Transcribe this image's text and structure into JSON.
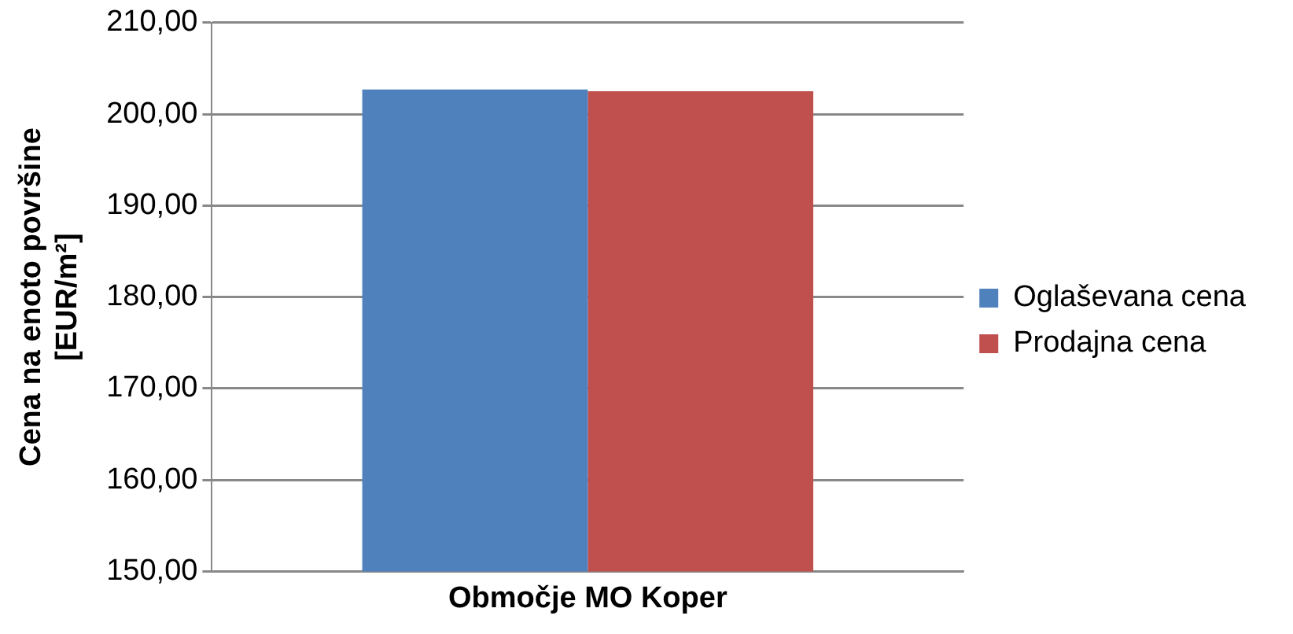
{
  "chart_data": {
    "type": "bar",
    "ylabel": "Cena na enoto površine [EUR/m²]",
    "categories": [
      "Območje MO Koper"
    ],
    "series": [
      {
        "name": "Oglaševana cena",
        "color": "#4f81bd",
        "values": [
          202.7
        ]
      },
      {
        "name": "Prodajna cena",
        "color": "#c0504d",
        "values": [
          202.5
        ]
      }
    ],
    "ylim": [
      150,
      210
    ],
    "yticks": [
      {
        "value": 150,
        "label": "150,00"
      },
      {
        "value": 160,
        "label": "160,00"
      },
      {
        "value": 170,
        "label": "170,00"
      },
      {
        "value": 180,
        "label": "180,00"
      },
      {
        "value": 190,
        "label": "190,00"
      },
      {
        "value": 200,
        "label": "200,00"
      },
      {
        "value": 210,
        "label": "210,00"
      }
    ],
    "grid": "y",
    "legend": "right"
  }
}
